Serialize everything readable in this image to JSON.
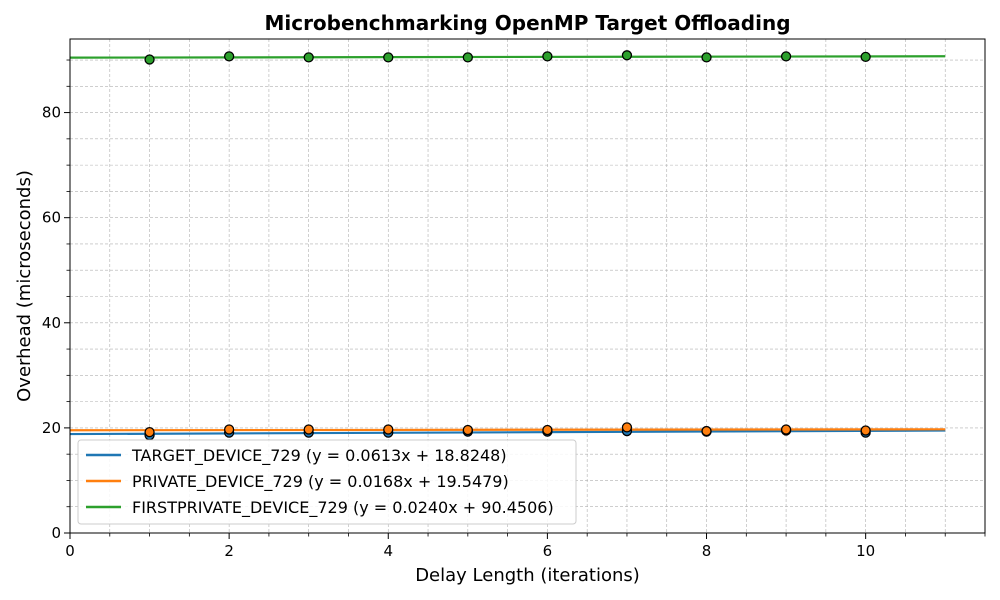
{
  "chart_data": {
    "type": "scatter",
    "title": "Microbenchmarking OpenMP Target Offloading",
    "xlabel": "Delay Length (iterations)",
    "ylabel": "Overhead (microseconds)",
    "xlim": [
      0,
      11.5
    ],
    "ylim": [
      0,
      94
    ],
    "xticks": [
      0,
      2,
      4,
      6,
      8,
      10
    ],
    "yticks": [
      0,
      20,
      40,
      60,
      80
    ],
    "grid": true,
    "legend_position": "lower-left",
    "fit_range": [
      0,
      11
    ],
    "series": [
      {
        "name": "TARGET_DEVICE_729 (y = 0.0613x + 18.8248)",
        "color": "#1f77b4",
        "slope": 0.0613,
        "intercept": 18.8248,
        "x": [
          1,
          2,
          3,
          4,
          5,
          6,
          7,
          8,
          9,
          10
        ],
        "y": [
          18.6,
          19.1,
          19.1,
          19.1,
          19.3,
          19.3,
          19.4,
          19.3,
          19.5,
          19.1
        ]
      },
      {
        "name": "PRIVATE_DEVICE_729 (y = 0.0168x + 19.5479)",
        "color": "#ff7f0e",
        "slope": 0.0168,
        "intercept": 19.5479,
        "x": [
          1,
          2,
          3,
          4,
          5,
          6,
          7,
          8,
          9,
          10
        ],
        "y": [
          19.2,
          19.7,
          19.7,
          19.7,
          19.6,
          19.6,
          20.1,
          19.4,
          19.7,
          19.5
        ]
      },
      {
        "name": "FIRSTPRIVATE_DEVICE_729 (y = 0.0240x + 90.4506)",
        "color": "#2ca02c",
        "slope": 0.024,
        "intercept": 90.4506,
        "x": [
          1,
          2,
          3,
          4,
          5,
          6,
          7,
          8,
          9,
          10
        ],
        "y": [
          90.1,
          90.7,
          90.5,
          90.5,
          90.5,
          90.7,
          90.9,
          90.5,
          90.7,
          90.6
        ]
      }
    ]
  }
}
